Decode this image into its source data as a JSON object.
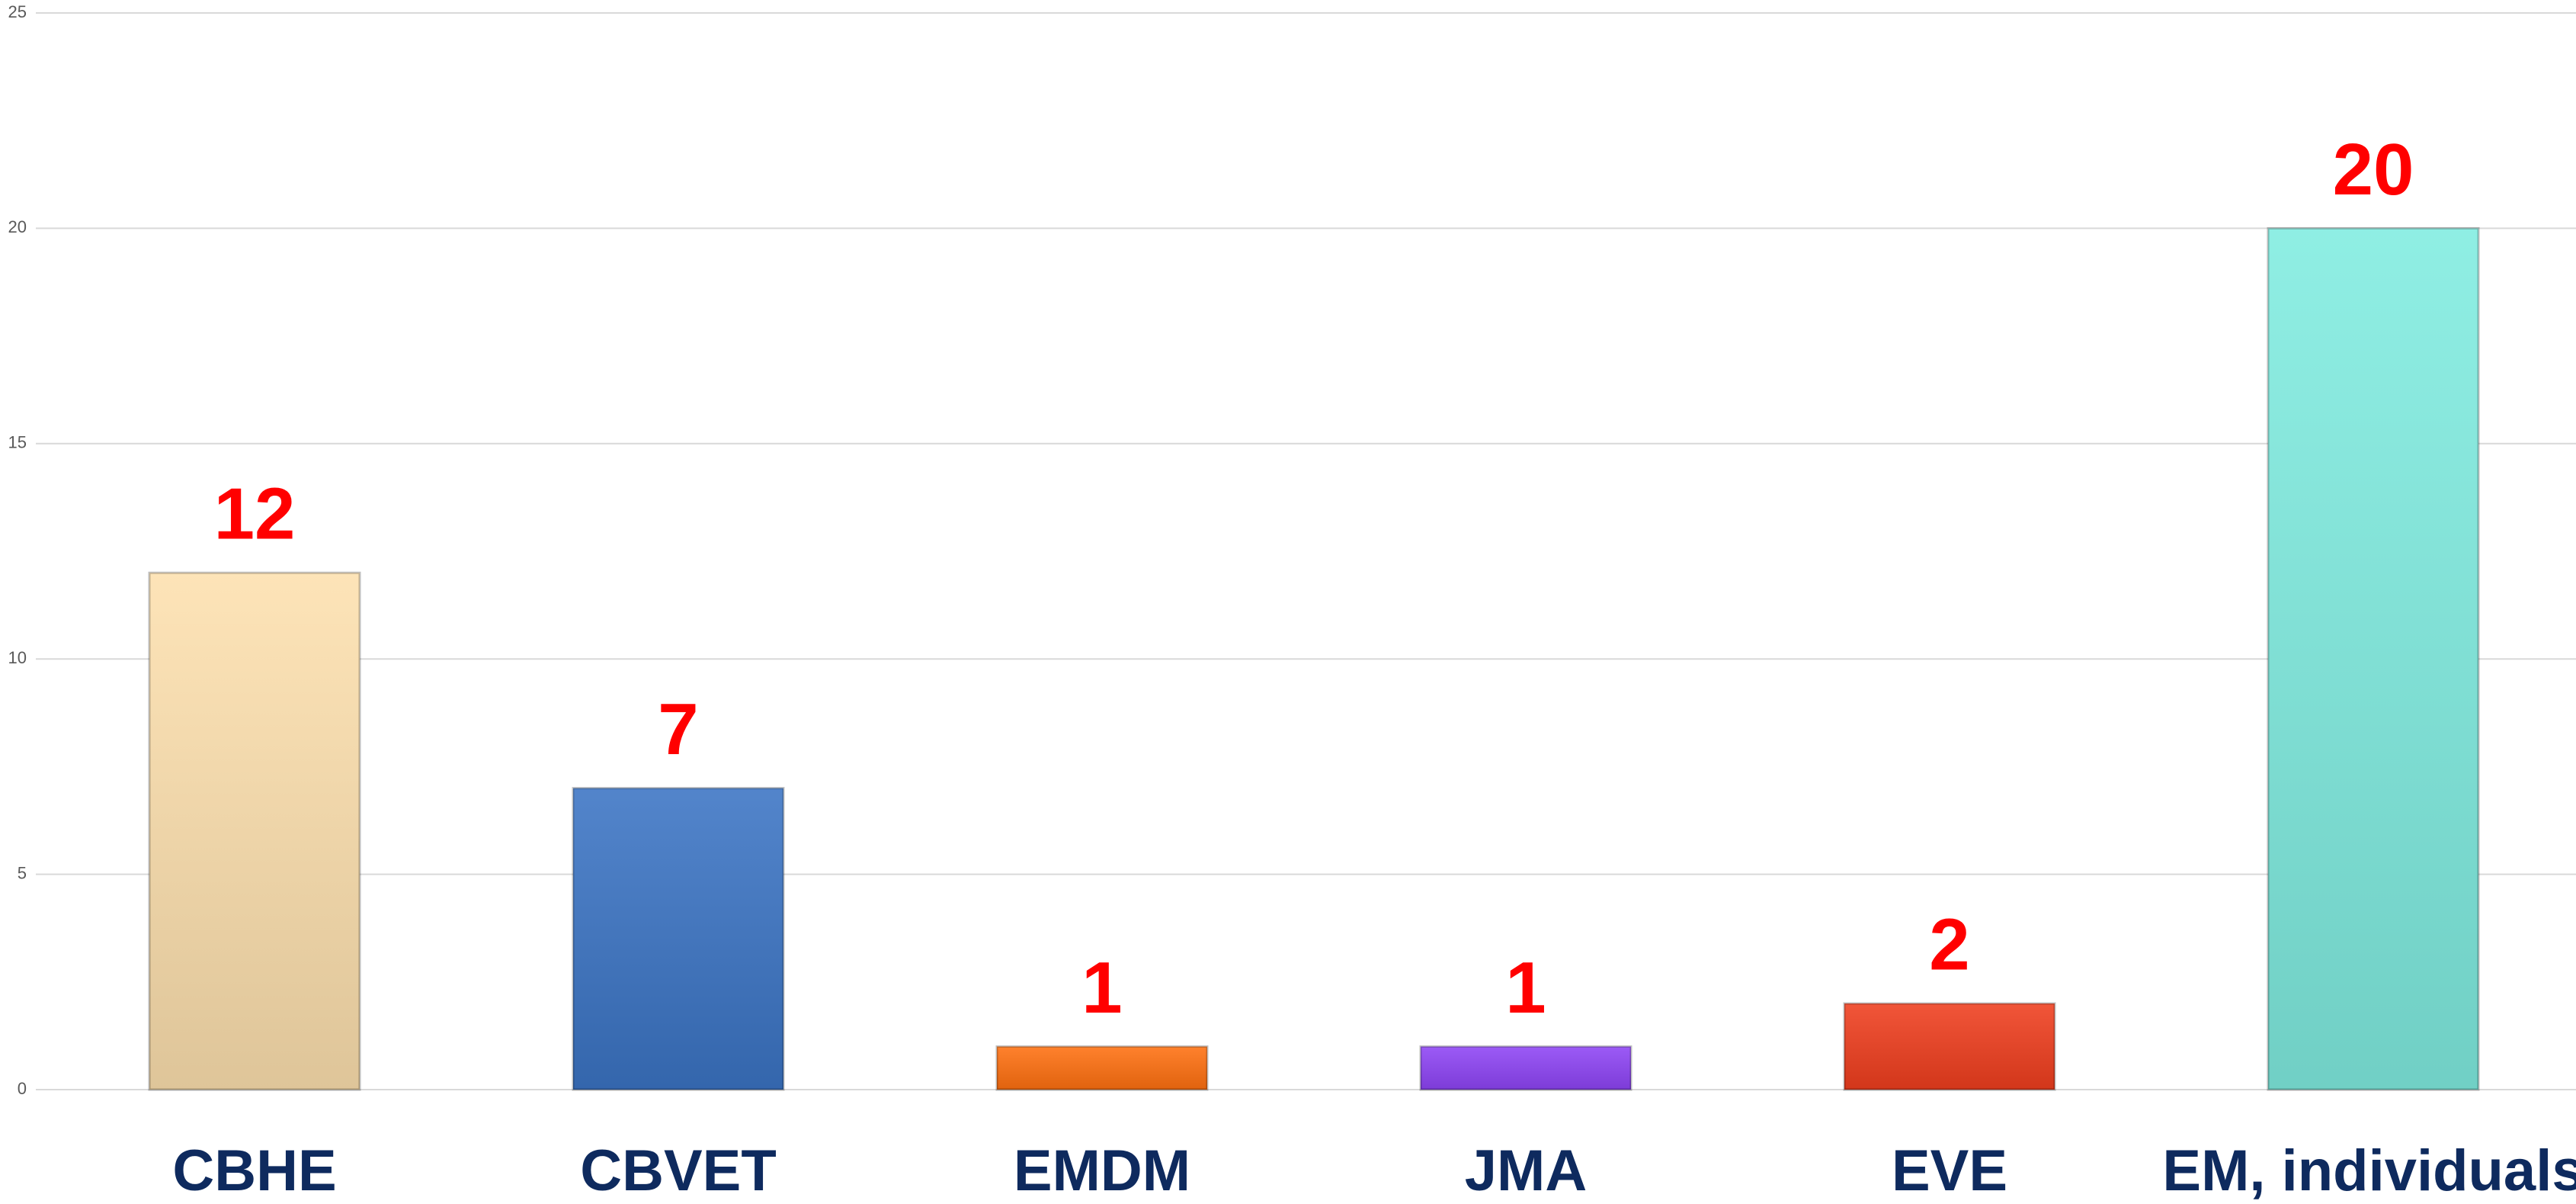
{
  "chart_data": {
    "type": "bar",
    "categories": [
      "CBHE",
      "CBVET",
      "EMDM",
      "JMA",
      "EVE",
      "EM, individuals"
    ],
    "values": [
      12,
      7,
      1,
      1,
      2,
      20
    ],
    "colors": [
      "#fde0ae",
      "#3b74c4",
      "#ff7010",
      "#8e44f5",
      "#ef3e1e",
      "#80ece0"
    ],
    "ylim": [
      0,
      25
    ],
    "yticks": [
      0,
      5,
      10,
      15,
      20,
      25
    ],
    "grid": true
  }
}
